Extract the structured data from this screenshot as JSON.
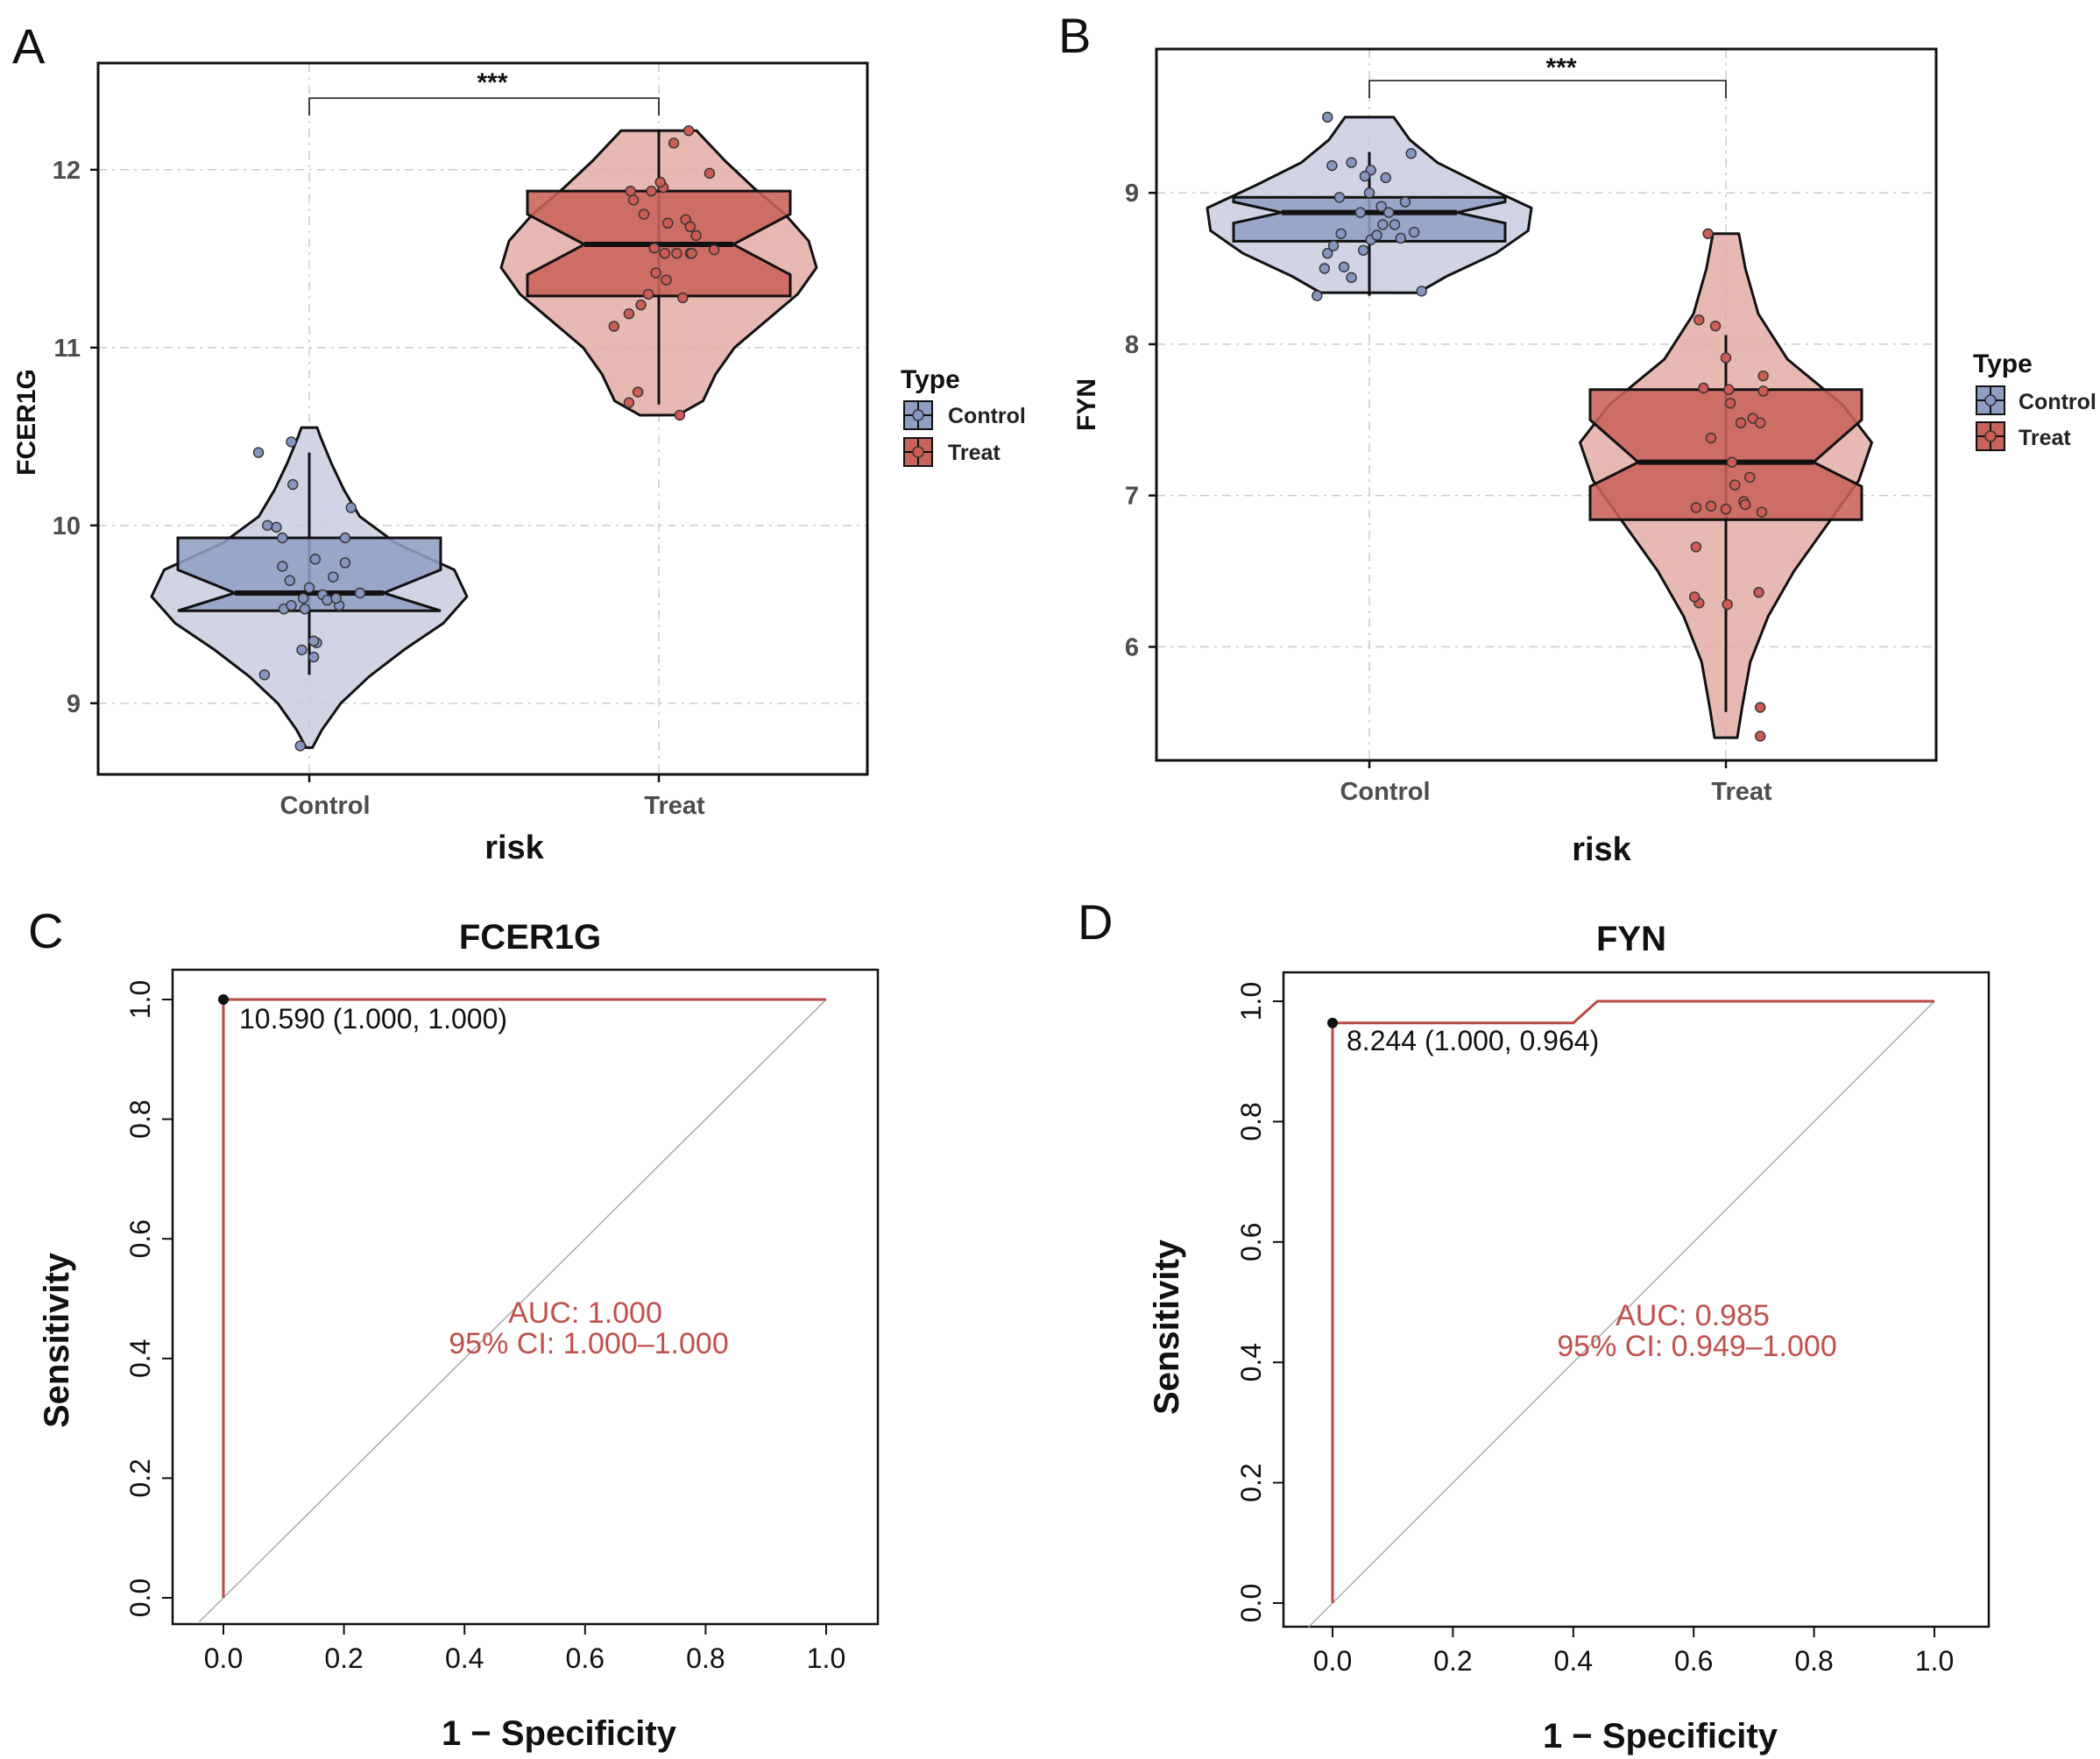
{
  "panels": {
    "A": {
      "letter": "A"
    },
    "B": {
      "letter": "B"
    },
    "C": {
      "letter": "C"
    },
    "D": {
      "letter": "D"
    }
  },
  "colors": {
    "control_fill": "#8f9fc3",
    "control_violin": "#c9cde0",
    "treat_fill": "#c8625a",
    "treat_violin": "#e4aca4",
    "control_point": "#8796c0",
    "treat_point": "#cd5b56",
    "roc_line": "#b84a45",
    "auc_text": "#c0504d",
    "diag_line": "#aaaaaa",
    "grid": "#cccccc"
  },
  "legend": {
    "title": "Type",
    "items": [
      "Control",
      "Treat"
    ]
  },
  "chart_data": [
    {
      "id": "A",
      "type": "violin-box",
      "ylabel": "FCER1G",
      "xlabel": "risk",
      "categories": [
        "Control",
        "Treat"
      ],
      "ylim": [
        8.6,
        12.6
      ],
      "yticks": [
        "9",
        "10",
        "11",
        "12"
      ],
      "significance": "***",
      "groups": [
        {
          "name": "Control",
          "q1": 9.52,
          "median": 9.62,
          "q3": 9.93,
          "notch_low": 9.52,
          "notch_high": 9.75,
          "whisker_low": 9.16,
          "whisker_high": 10.41,
          "violin": [
            [
              8.75,
              0.02
            ],
            [
              8.85,
              0.08
            ],
            [
              9.0,
              0.2
            ],
            [
              9.15,
              0.38
            ],
            [
              9.3,
              0.6
            ],
            [
              9.45,
              0.85
            ],
            [
              9.6,
              1.0
            ],
            [
              9.75,
              0.92
            ],
            [
              9.9,
              0.55
            ],
            [
              10.05,
              0.32
            ],
            [
              10.2,
              0.22
            ],
            [
              10.35,
              0.14
            ],
            [
              10.5,
              0.07
            ],
            [
              10.55,
              0.05
            ]
          ],
          "points": [
            [
              -0.3,
              9.16
            ],
            [
              -0.17,
              9.53
            ],
            [
              -0.13,
              9.69
            ],
            [
              -0.18,
              9.77
            ],
            [
              -0.12,
              9.55
            ],
            [
              -0.05,
              9.3
            ],
            [
              0.03,
              9.26
            ],
            [
              0.05,
              9.34
            ],
            [
              0.03,
              9.35
            ],
            [
              0.09,
              9.61
            ],
            [
              0.12,
              9.58
            ],
            [
              0.2,
              9.55
            ],
            [
              0.16,
              9.71
            ],
            [
              0.24,
              9.93
            ],
            [
              0.24,
              9.79
            ],
            [
              0.34,
              9.62
            ],
            [
              0.28,
              10.1
            ],
            [
              0.18,
              9.59
            ],
            [
              -0.04,
              9.59
            ],
            [
              -0.18,
              9.93
            ],
            [
              -0.22,
              9.99
            ],
            [
              -0.28,
              10.0
            ],
            [
              -0.34,
              10.41
            ],
            [
              -0.11,
              10.23
            ],
            [
              -0.12,
              10.47
            ],
            [
              0.04,
              9.81
            ],
            [
              -0.03,
              9.53
            ],
            [
              0.0,
              9.65
            ],
            [
              -0.06,
              8.76
            ]
          ]
        },
        {
          "name": "Treat",
          "q1": 11.29,
          "median": 11.58,
          "q3": 11.88,
          "notch_low": 11.41,
          "notch_high": 11.75,
          "whisker_low": 10.68,
          "whisker_high": 12.22,
          "violin": [
            [
              10.62,
              0.12
            ],
            [
              10.7,
              0.28
            ],
            [
              10.85,
              0.36
            ],
            [
              11.0,
              0.48
            ],
            [
              11.15,
              0.68
            ],
            [
              11.3,
              0.88
            ],
            [
              11.45,
              1.0
            ],
            [
              11.6,
              0.95
            ],
            [
              11.75,
              0.8
            ],
            [
              11.9,
              0.6
            ],
            [
              12.05,
              0.42
            ],
            [
              12.2,
              0.26
            ],
            [
              12.22,
              0.24
            ]
          ],
          "points": [
            [
              -0.3,
              11.12
            ],
            [
              -0.2,
              10.69
            ],
            [
              -0.14,
              10.75
            ],
            [
              -0.2,
              11.19
            ],
            [
              -0.12,
              11.24
            ],
            [
              -0.07,
              11.3
            ],
            [
              -0.03,
              11.56
            ],
            [
              0.04,
              11.53
            ],
            [
              0.12,
              11.53
            ],
            [
              0.21,
              11.53
            ],
            [
              0.25,
              11.63
            ],
            [
              0.18,
              11.72
            ],
            [
              0.06,
              11.7
            ],
            [
              0.21,
              11.68
            ],
            [
              -0.17,
              11.83
            ],
            [
              -0.19,
              11.88
            ],
            [
              -0.05,
              11.88
            ],
            [
              0.03,
              11.9
            ],
            [
              0.1,
              12.15
            ],
            [
              0.2,
              12.22
            ],
            [
              0.34,
              11.98
            ],
            [
              0.37,
              11.55
            ],
            [
              0.22,
              11.53
            ],
            [
              0.05,
              11.38
            ],
            [
              -0.02,
              11.42
            ],
            [
              0.16,
              11.28
            ],
            [
              -0.1,
              11.75
            ],
            [
              0.01,
              11.93
            ],
            [
              0.14,
              10.62
            ]
          ]
        }
      ]
    },
    {
      "id": "B",
      "type": "violin-box",
      "ylabel": "FYN",
      "xlabel": "risk",
      "categories": [
        "Control",
        "Treat"
      ],
      "ylim": [
        5.25,
        9.95
      ],
      "yticks": [
        "6",
        "7",
        "8",
        "9"
      ],
      "significance": "***",
      "groups": [
        {
          "name": "Control",
          "q1": 8.68,
          "median": 8.87,
          "q3": 8.97,
          "notch_low": 8.8,
          "notch_high": 8.94,
          "whisker_low": 8.32,
          "whisker_high": 9.27,
          "violin": [
            [
              8.34,
              0.3
            ],
            [
              8.45,
              0.48
            ],
            [
              8.6,
              0.78
            ],
            [
              8.75,
              0.98
            ],
            [
              8.9,
              1.0
            ],
            [
              9.05,
              0.7
            ],
            [
              9.2,
              0.42
            ],
            [
              9.35,
              0.25
            ],
            [
              9.5,
              0.15
            ]
          ],
          "points": [
            [
              -0.35,
              8.32
            ],
            [
              -0.3,
              8.5
            ],
            [
              -0.28,
              8.6
            ],
            [
              -0.24,
              8.65
            ],
            [
              -0.19,
              8.73
            ],
            [
              -0.17,
              8.51
            ],
            [
              -0.12,
              8.44
            ],
            [
              -0.04,
              8.62
            ],
            [
              0.01,
              8.69
            ],
            [
              0.05,
              8.72
            ],
            [
              0.09,
              8.79
            ],
            [
              0.13,
              8.87
            ],
            [
              0.17,
              8.79
            ],
            [
              0.21,
              8.7
            ],
            [
              0.24,
              8.94
            ],
            [
              0.3,
              8.74
            ],
            [
              0.35,
              8.35
            ],
            [
              0.28,
              9.26
            ],
            [
              0.11,
              9.1
            ],
            [
              0.01,
              9.15
            ],
            [
              -0.03,
              9.11
            ],
            [
              -0.12,
              9.2
            ],
            [
              -0.25,
              9.18
            ],
            [
              -0.28,
              9.5
            ],
            [
              -0.06,
              8.87
            ],
            [
              0.08,
              8.91
            ],
            [
              0.0,
              9.0
            ],
            [
              -0.2,
              8.97
            ]
          ]
        },
        {
          "name": "Treat",
          "q1": 6.84,
          "median": 7.22,
          "q3": 7.7,
          "notch_low": 7.06,
          "notch_high": 7.5,
          "whisker_low": 5.57,
          "whisker_high": 8.06,
          "violin": [
            [
              5.4,
              0.07
            ],
            [
              5.6,
              0.1
            ],
            [
              5.9,
              0.15
            ],
            [
              6.2,
              0.26
            ],
            [
              6.5,
              0.42
            ],
            [
              6.8,
              0.62
            ],
            [
              7.1,
              0.82
            ],
            [
              7.35,
              0.9
            ],
            [
              7.6,
              0.72
            ],
            [
              7.9,
              0.38
            ],
            [
              8.2,
              0.2
            ],
            [
              8.5,
              0.12
            ],
            [
              8.73,
              0.08
            ]
          ],
          "points": [
            [
              -0.12,
              8.73
            ],
            [
              -0.18,
              8.16
            ],
            [
              -0.07,
              8.12
            ],
            [
              0.0,
              7.91
            ],
            [
              -0.15,
              7.71
            ],
            [
              0.02,
              7.7
            ],
            [
              0.03,
              7.61
            ],
            [
              0.1,
              7.48
            ],
            [
              0.18,
              7.51
            ],
            [
              0.23,
              7.48
            ],
            [
              0.25,
              7.69
            ],
            [
              0.25,
              7.79
            ],
            [
              -0.1,
              7.38
            ],
            [
              0.04,
              7.22
            ],
            [
              0.06,
              7.07
            ],
            [
              0.16,
              7.12
            ],
            [
              0.12,
              6.96
            ],
            [
              0.0,
              6.91
            ],
            [
              -0.1,
              6.93
            ],
            [
              -0.2,
              6.92
            ],
            [
              0.13,
              6.94
            ],
            [
              0.24,
              6.89
            ],
            [
              -0.2,
              6.66
            ],
            [
              -0.18,
              6.29
            ],
            [
              -0.21,
              6.33
            ],
            [
              0.01,
              6.28
            ],
            [
              0.22,
              6.36
            ],
            [
              0.23,
              5.6
            ],
            [
              0.23,
              5.41
            ]
          ]
        }
      ]
    },
    {
      "id": "C",
      "type": "line",
      "title": "FCER1G",
      "xlabel": "1 − Specificity",
      "ylabel": "Sensitivity",
      "xlim": [
        -0.08,
        1.08
      ],
      "ylim": [
        -0.04,
        1.04
      ],
      "xticks": [
        "0.0",
        "0.2",
        "0.4",
        "0.6",
        "0.8",
        "1.0"
      ],
      "yticks": [
        "0.0",
        "0.2",
        "0.4",
        "0.6",
        "0.8",
        "1.0"
      ],
      "roc": {
        "x": [
          0,
          0,
          1
        ],
        "y": [
          0,
          1,
          1
        ]
      },
      "best_point": {
        "x": 0,
        "y": 1
      },
      "threshold_label": "10.590 (1.000, 1.000)",
      "auc_label": "AUC: 1.000",
      "ci_label": "95% CI: 1.000–1.000"
    },
    {
      "id": "D",
      "type": "line",
      "title": "FYN",
      "xlabel": "1 − Specificity",
      "ylabel": "Sensitivity",
      "xlim": [
        -0.08,
        1.08
      ],
      "ylim": [
        -0.04,
        1.04
      ],
      "xticks": [
        "0.0",
        "0.2",
        "0.4",
        "0.6",
        "0.8",
        "1.0"
      ],
      "yticks": [
        "0.0",
        "0.2",
        "0.4",
        "0.6",
        "0.8",
        "1.0"
      ],
      "roc": {
        "x": [
          0,
          0,
          0.4,
          0.44,
          1
        ],
        "y": [
          0,
          0.964,
          0.964,
          1,
          1
        ]
      },
      "best_point": {
        "x": 0,
        "y": 0.964
      },
      "threshold_label": "8.244 (1.000, 0.964)",
      "auc_label": "AUC: 0.985",
      "ci_label": "95% CI: 0.949–1.000"
    }
  ]
}
